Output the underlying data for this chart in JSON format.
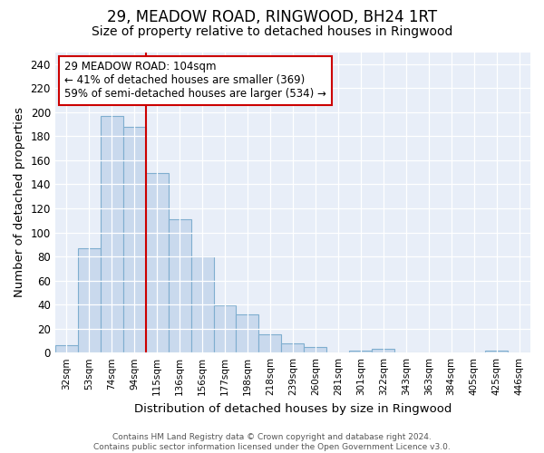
{
  "title1": "29, MEADOW ROAD, RINGWOOD, BH24 1RT",
  "title2": "Size of property relative to detached houses in Ringwood",
  "xlabel": "Distribution of detached houses by size in Ringwood",
  "ylabel": "Number of detached properties",
  "bar_labels": [
    "32sqm",
    "53sqm",
    "74sqm",
    "94sqm",
    "115sqm",
    "136sqm",
    "156sqm",
    "177sqm",
    "198sqm",
    "218sqm",
    "239sqm",
    "260sqm",
    "281sqm",
    "301sqm",
    "322sqm",
    "343sqm",
    "363sqm",
    "384sqm",
    "405sqm",
    "425sqm",
    "446sqm"
  ],
  "bar_heights": [
    6,
    87,
    197,
    188,
    149,
    111,
    80,
    39,
    32,
    15,
    8,
    5,
    0,
    2,
    3,
    0,
    0,
    0,
    0,
    2,
    0
  ],
  "bar_color": "#c9d9ed",
  "bar_edge_color": "#7faecf",
  "vline_x": 3.5,
  "vline_color": "#cc0000",
  "annotation_line1": "29 MEADOW ROAD: 104sqm",
  "annotation_line2": "← 41% of detached houses are smaller (369)",
  "annotation_line3": "59% of semi-detached houses are larger (534) →",
  "annotation_box_color": "white",
  "annotation_box_edge": "#cc0000",
  "ylim": [
    0,
    250
  ],
  "yticks": [
    0,
    20,
    40,
    60,
    80,
    100,
    120,
    140,
    160,
    180,
    200,
    220,
    240
  ],
  "bg_color": "#e8eef8",
  "footer_text": "Contains HM Land Registry data © Crown copyright and database right 2024.\nContains public sector information licensed under the Open Government Licence v3.0.",
  "title1_fontsize": 12,
  "title2_fontsize": 10,
  "annotation_fontsize": 8.5
}
